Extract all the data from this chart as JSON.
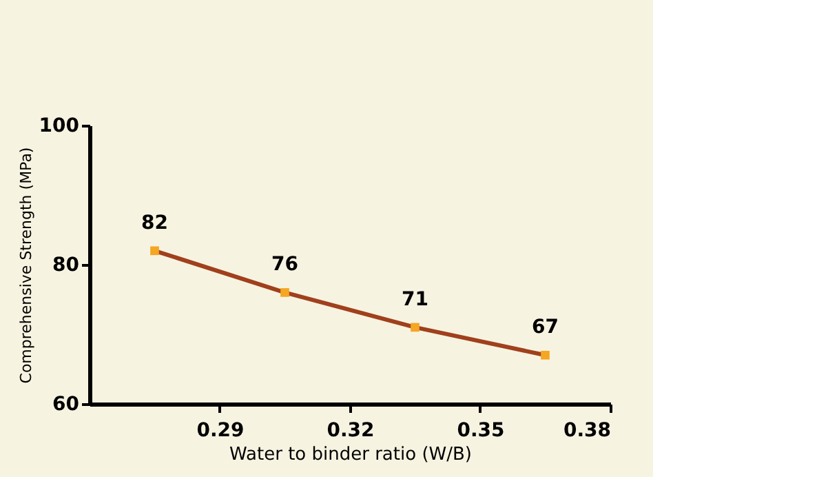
{
  "chart_data": {
    "type": "line",
    "xlabel": "Water to binder ratio (W/B)",
    "ylabel": "Comprehensive Strength (MPa)",
    "x": [
      0.275,
      0.305,
      0.335,
      0.365
    ],
    "series": [
      {
        "color": "#a0401c",
        "colors": [
          "#f5a623",
          "#f5a623",
          "#f5a623",
          "#f5a623"
        ],
        "values": [
          82,
          76,
          71,
          67
        ]
      }
    ],
    "xlim": [
      0.26,
      0.38
    ],
    "xticks": [
      0.29,
      0.32,
      0.35,
      0.38
    ],
    "ylim": [
      60,
      100
    ],
    "yticks": [
      60,
      80,
      100
    ],
    "data_labels": true,
    "marker": "square",
    "line_style": "solid",
    "grid": false
  }
}
